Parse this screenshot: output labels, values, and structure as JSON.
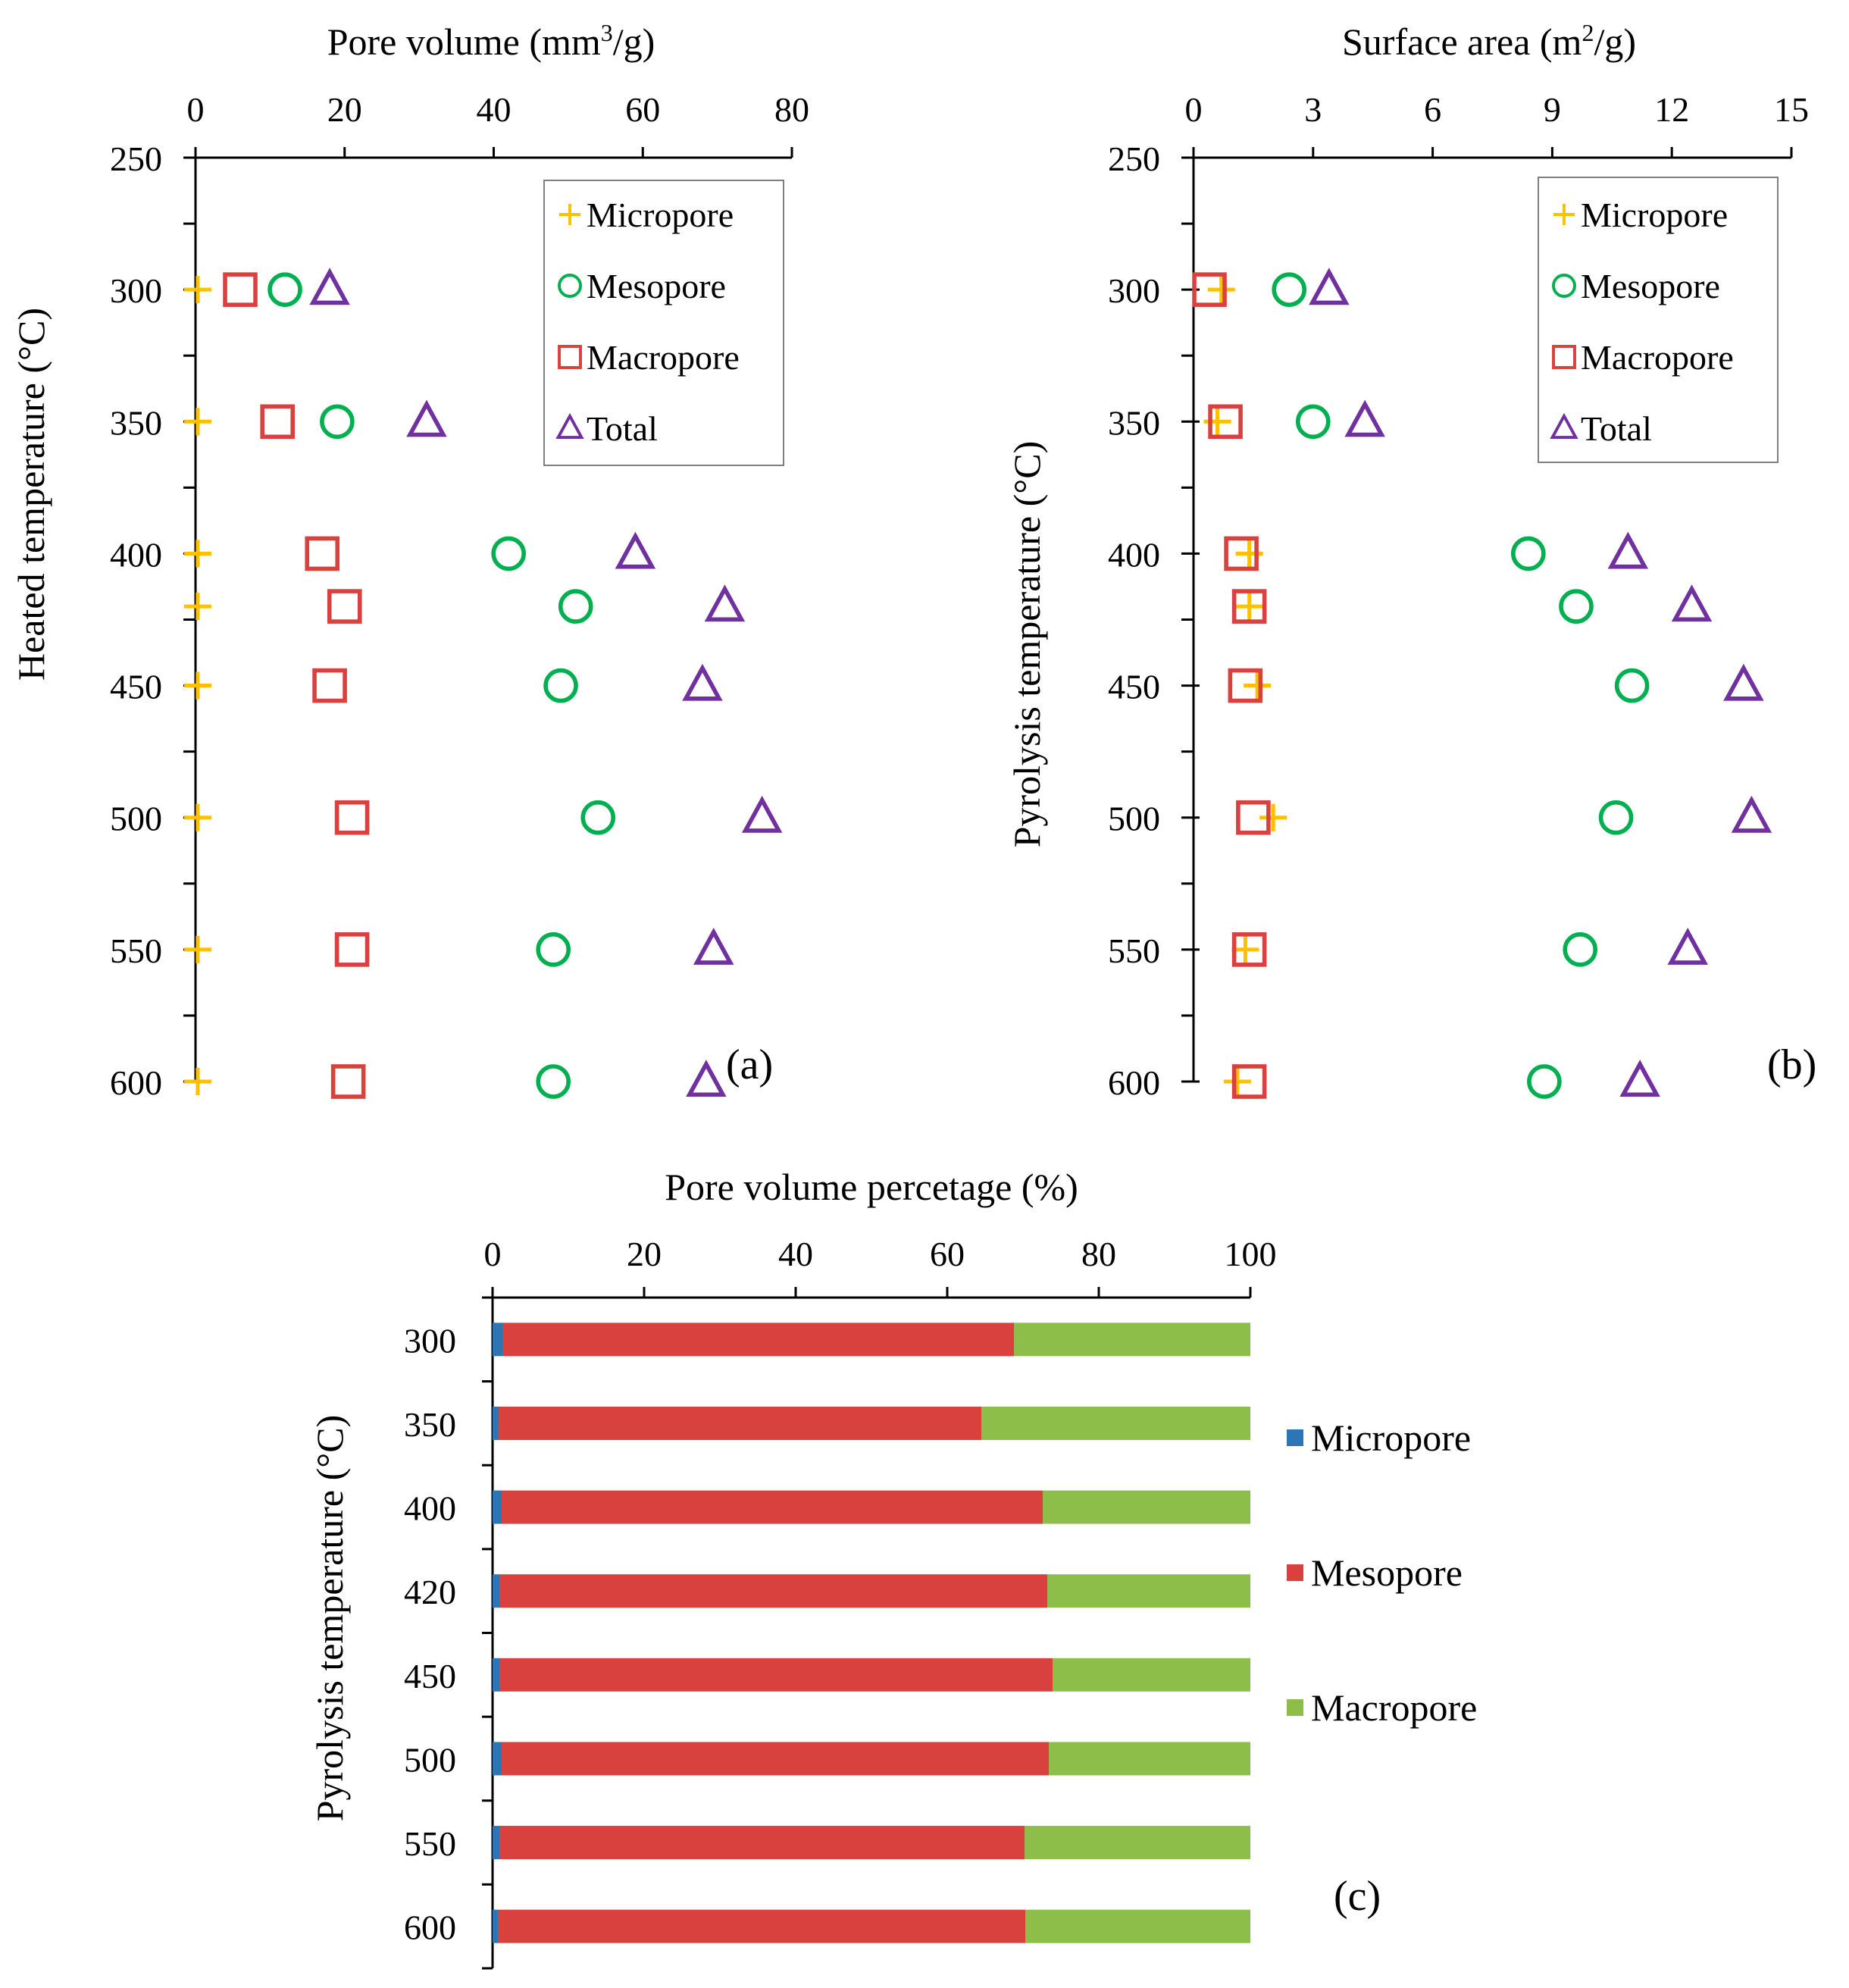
{
  "colors": {
    "micropore": "#FFC000",
    "mesopore": "#00B050",
    "macropore": "#D9413F",
    "total": "#7030A0",
    "bar_micropore": "#2E75B6",
    "bar_mesopore": "#D9413F",
    "bar_macropore": "#8DBE4A",
    "axis": "#000000"
  },
  "chart_data": [
    {
      "id": "a",
      "type": "scatter",
      "panel_label": "(a)",
      "title": "Pore volume (mm³/g)",
      "title_main": "Pore volume (mm",
      "title_sup": "3",
      "title_tail": "/g)",
      "xlabel": "Pore volume (mm³/g)",
      "ylabel": "Heated temperature (°C)",
      "xlim": [
        0,
        80
      ],
      "x_ticks": [
        0,
        20,
        40,
        60,
        80
      ],
      "ylim": [
        250,
        600
      ],
      "y_ticks": [
        250,
        300,
        350,
        400,
        450,
        500,
        550,
        600
      ],
      "y": [
        300,
        350,
        400,
        420,
        450,
        500,
        550,
        600
      ],
      "legend": [
        "Micropore",
        "Mesopore",
        "Macropore",
        "Total"
      ],
      "series": [
        {
          "name": "Micropore",
          "marker": "plus",
          "values": [
            0.3,
            0.3,
            0.3,
            0.3,
            0.3,
            0.3,
            0.3,
            0.3
          ]
        },
        {
          "name": "Mesopore",
          "marker": "circle",
          "values": [
            12,
            19,
            42,
            51,
            49,
            54,
            48,
            48
          ]
        },
        {
          "name": "Macropore",
          "marker": "square",
          "values": [
            6,
            11,
            17,
            20,
            18,
            21,
            21,
            20.5
          ]
        },
        {
          "name": "Total",
          "marker": "triangle",
          "values": [
            18,
            31,
            59,
            71,
            68,
            76,
            69.5,
            68.5
          ]
        }
      ]
    },
    {
      "id": "b",
      "type": "scatter",
      "panel_label": "(b)",
      "title": "Surface area (m²/g)",
      "title_main": "Surface area (m",
      "title_sup": "2",
      "title_tail": "/g)",
      "xlabel": "Surface area (m²/g)",
      "ylabel": "Pyrolysis  temperature (°C)",
      "xlim": [
        0,
        15
      ],
      "x_ticks": [
        0,
        3,
        6,
        9,
        12,
        15
      ],
      "ylim": [
        250,
        600
      ],
      "y_ticks": [
        250,
        300,
        350,
        400,
        450,
        500,
        550,
        600
      ],
      "y": [
        300,
        350,
        400,
        420,
        450,
        500,
        550,
        600
      ],
      "legend": [
        "Micropore",
        "Mesopore",
        "Macropore",
        "Total"
      ],
      "series": [
        {
          "name": "Micropore",
          "marker": "plus",
          "values": [
            0.7,
            0.6,
            1.4,
            1.4,
            1.6,
            2.0,
            1.3,
            1.1
          ]
        },
        {
          "name": "Mesopore",
          "marker": "circle",
          "values": [
            2.4,
            3.0,
            8.4,
            9.6,
            11.0,
            10.6,
            9.7,
            8.8
          ]
        },
        {
          "name": "Macropore",
          "marker": "square",
          "values": [
            0.4,
            0.8,
            1.2,
            1.4,
            1.3,
            1.5,
            1.4,
            1.4
          ]
        },
        {
          "name": "Total",
          "marker": "triangle",
          "values": [
            3.4,
            4.3,
            10.9,
            12.5,
            13.8,
            14.0,
            12.4,
            11.2
          ]
        }
      ]
    },
    {
      "id": "c",
      "type": "bar",
      "orientation": "horizontal",
      "stacked": true,
      "panel_label": "(c)",
      "title": "Pore volume percetage  (%)",
      "xlabel": "Pore volume percetage  (%)",
      "ylabel": "Pyrolysis temperature (°C)",
      "xlim": [
        0,
        100
      ],
      "x_ticks": [
        0,
        20,
        40,
        60,
        80,
        100
      ],
      "categories": [
        "300",
        "350",
        "400",
        "420",
        "450",
        "500",
        "550",
        "600"
      ],
      "legend": [
        "Micropore",
        "Mesopore",
        "Macropore"
      ],
      "series": [
        {
          "name": "Micropore",
          "values": [
            1.3,
            0.8,
            1.2,
            0.9,
            0.9,
            1.2,
            0.9,
            0.7
          ]
        },
        {
          "name": "Mesopore",
          "values": [
            67.5,
            63.7,
            71.4,
            72.3,
            73.0,
            72.2,
            69.3,
            69.6
          ]
        },
        {
          "name": "Macropore",
          "values": [
            31.2,
            35.5,
            27.4,
            26.8,
            26.1,
            26.6,
            29.8,
            29.7
          ]
        }
      ]
    }
  ]
}
